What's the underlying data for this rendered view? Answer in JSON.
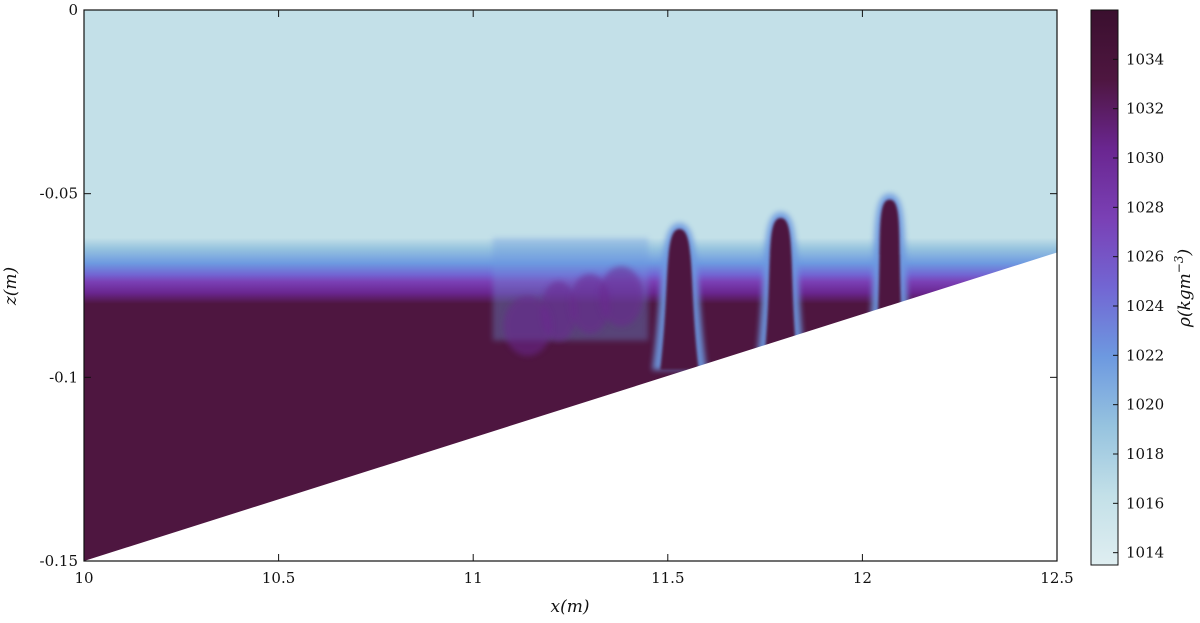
{
  "chart_data": {
    "type": "heatmap",
    "title": "",
    "xlabel": "x(m)",
    "ylabel": "z(m)",
    "xlim": [
      10,
      12.5
    ],
    "ylim": [
      -0.15,
      0
    ],
    "xticks": [
      10,
      10.5,
      11,
      11.5,
      12,
      12.5
    ],
    "xtick_labels": [
      "10",
      "10.5",
      "11",
      "11.5",
      "12",
      "12.5"
    ],
    "yticks": [
      0,
      -0.05,
      -0.1,
      -0.15
    ],
    "ytick_labels": [
      "0",
      "-0.05",
      "-0.1",
      "-0.15"
    ],
    "colorbar": {
      "label": "ρ(kgm⁻³)",
      "label_base": "ρ(kgm",
      "label_exp": "−3",
      "label_close": ")",
      "range": [
        1013.5,
        1036
      ],
      "ticks": [
        1014,
        1016,
        1018,
        1020,
        1022,
        1024,
        1026,
        1028,
        1030,
        1032,
        1034
      ],
      "tick_labels": [
        "1014",
        "1016",
        "1018",
        "1020",
        "1022",
        "1024",
        "1026",
        "1028",
        "1030",
        "1032",
        "1034"
      ],
      "colors": [
        "#dfeef1",
        "#c3e0e8",
        "#96c3df",
        "#6d99e0",
        "#7266d3",
        "#7a40b5",
        "#6a2690",
        "#4e1640",
        "#3a0f2e"
      ]
    },
    "upper_layer_density": 1015,
    "lower_layer_density": 1035,
    "interface_depth_offshore": -0.075,
    "slope_bottom": [
      [
        10,
        -0.15
      ],
      [
        12.5,
        -0.066
      ]
    ],
    "boluses": [
      {
        "x": 11.53,
        "crest_z": -0.058,
        "half_width": 0.07
      },
      {
        "x": 11.79,
        "crest_z": -0.055,
        "half_width": 0.065
      },
      {
        "x": 12.07,
        "crest_z": -0.05,
        "half_width": 0.06
      }
    ],
    "mixing_zone_x": [
      11.05,
      11.45
    ]
  }
}
